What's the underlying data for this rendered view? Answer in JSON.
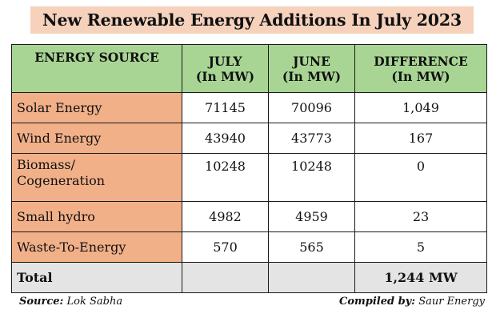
{
  "title": "New Renewable Energy Additions In July 2023",
  "chart_data": {
    "type": "table",
    "title": "New Renewable Energy Additions In July 2023",
    "columns": [
      {
        "line1": "ENERGY SOURCE",
        "line2": ""
      },
      {
        "line1": "JULY",
        "line2": "(In MW)"
      },
      {
        "line1": "JUNE",
        "line2": "(In MW)"
      },
      {
        "line1": "DIFFERENCE",
        "line2": "(In MW)"
      }
    ],
    "rows": [
      {
        "source": "Solar Energy",
        "source2": "",
        "july": "71145",
        "june": "70096",
        "difference": "1,049"
      },
      {
        "source": "Wind Energy",
        "source2": "",
        "july": "43940",
        "june": "43773",
        "difference": "167"
      },
      {
        "source": "Biomass/",
        "source2": "Cogeneration",
        "july": "10248",
        "june": "10248",
        "difference": "0"
      },
      {
        "source": "Small hydro",
        "source2": "",
        "july": "4982",
        "june": "4959",
        "difference": "23"
      },
      {
        "source": "Waste-To-Energy",
        "source2": "",
        "july": "570",
        "june": "565",
        "difference": "5"
      }
    ],
    "total": {
      "label": "Total",
      "july": "",
      "june": "",
      "difference": "1,244 MW"
    }
  },
  "footer": {
    "source_label": "Source:",
    "source_value": "Lok Sabha",
    "compiled_label": "Compiled by:",
    "compiled_value": "Saur Energy"
  },
  "colors": {
    "title_bg": "#f6d2bd",
    "header_bg": "#a8d594",
    "source_col_bg": "#f2b089",
    "total_bg": "#e4e4e4"
  }
}
